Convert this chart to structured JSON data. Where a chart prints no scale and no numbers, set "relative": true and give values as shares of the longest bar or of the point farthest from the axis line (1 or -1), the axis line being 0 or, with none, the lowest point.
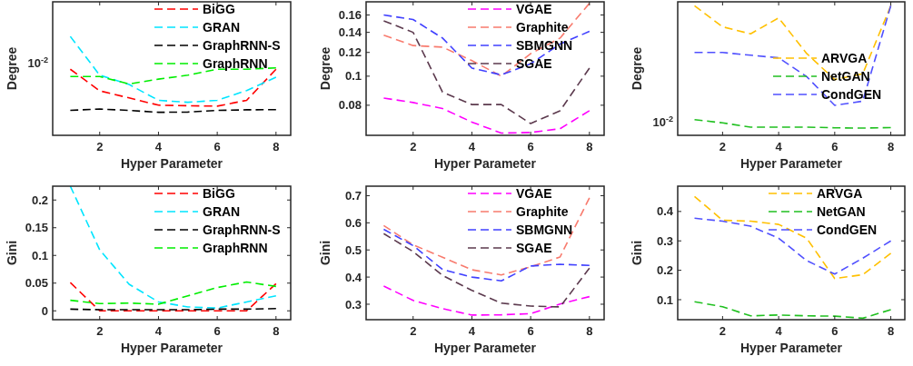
{
  "chart_data": [
    {
      "type": "line",
      "x": [
        1,
        2,
        3,
        4,
        5,
        6,
        7,
        8
      ],
      "xlim": [
        0.4,
        8.5
      ],
      "xticks": [
        2,
        4,
        6,
        8
      ],
      "relative": true,
      "annotations": [
        "10$^{-2}$"
      ],
      "xlabel": "Hyper Parameter",
      "ylabel": "Degree",
      "legend": "top right",
      "line_style": "dashed",
      "series": [
        {
          "name": "BiGG",
          "color": "#ff0000",
          "values": [
            0.668,
            0.45,
            0.378,
            0.305,
            0.299,
            0.295,
            0.354,
            0.668
          ]
        },
        {
          "name": "GRAN",
          "color": "#00e5ff",
          "values": [
            1,
            0.608,
            0.514,
            0.354,
            0.334,
            0.354,
            0.453,
            0.588
          ]
        },
        {
          "name": "GraphRNN-S",
          "color": "#000000",
          "values": [
            0.252,
            0.266,
            0.252,
            0.233,
            0.235,
            0.252,
            0.258,
            0.26
          ]
        },
        {
          "name": "GraphRNN",
          "color": "#00ee00",
          "values": [
            0.595,
            0.595,
            0.519,
            0.568,
            0.608,
            0.668,
            0.668,
            0.682
          ]
        }
      ]
    },
    {
      "type": "line",
      "x": [
        1,
        2,
        3,
        4,
        5,
        6,
        7,
        8
      ],
      "xlim": [
        0.4,
        8.5
      ],
      "xticks": [
        2,
        4,
        6,
        8
      ],
      "log": "y",
      "ylim": [
        0.0635,
        0.177
      ],
      "yticks": [
        0.08,
        0.1,
        0.12,
        0.14,
        0.16
      ],
      "xlabel": "Hyper Parameter",
      "ylabel": "Degree",
      "legend": "top right",
      "line_style": "dashed",
      "series": [
        {
          "name": "VGAE",
          "color": "#ff00ff",
          "values": [
            0.0845,
            0.0817,
            0.078,
            0.0703,
            0.0646,
            0.0649,
            0.0668,
            0.0767
          ]
        },
        {
          "name": "Graphite",
          "color": "#f87b6e",
          "values": [
            0.137,
            0.1265,
            0.125,
            0.1127,
            0.1,
            0.1189,
            0.134,
            0.175
          ]
        },
        {
          "name": "SBMGNN",
          "color": "#4040ff",
          "values": [
            0.16,
            0.1545,
            0.134,
            0.1064,
            0.101,
            0.11,
            0.128,
            0.141
          ]
        },
        {
          "name": "SGAE",
          "color": "#5c3a4e",
          "values": [
            0.153,
            0.14,
            0.0885,
            0.0804,
            0.0804,
            0.0695,
            0.0767,
            0.1064
          ]
        }
      ]
    },
    {
      "type": "line",
      "x": [
        1,
        2,
        3,
        4,
        5,
        6,
        7,
        8
      ],
      "xlim": [
        0.4,
        8.5
      ],
      "xticks": [
        2,
        4,
        6,
        8
      ],
      "relative": true,
      "annotations": [
        "10$^{-2}$"
      ],
      "xlabel": "Hyper Parameter",
      "ylabel": "Degree",
      "legend": "right",
      "line_style": "dashed",
      "series": [
        {
          "name": "ARVGA",
          "color": "#ffc000",
          "values": [
            1,
            0.837,
            0.783,
            0.906,
            0.631,
            0.43,
            0.475,
            1
          ]
        },
        {
          "name": "NetGAN",
          "color": "#20c020",
          "values": [
            0.121,
            0.096,
            0.0626,
            0.0626,
            0.0634,
            0.058,
            0.0557,
            0.0595
          ]
        },
        {
          "name": "CondGEN",
          "color": "#5050ff",
          "values": [
            0.639,
            0.639,
            0.618,
            0.598,
            0.453,
            0.231,
            0.264,
            1
          ]
        }
      ]
    },
    {
      "type": "line",
      "x": [
        1,
        2,
        3,
        4,
        5,
        6,
        7,
        8
      ],
      "xlim": [
        0.4,
        8.5
      ],
      "xticks": [
        2,
        4,
        6,
        8
      ],
      "ylim": [
        -0.016,
        0.225
      ],
      "yticks": [
        0,
        0.05,
        0.1,
        0.15,
        0.2
      ],
      "xlabel": "Hyper Parameter",
      "ylabel": "Gini",
      "legend": "top right",
      "line_style": "dashed",
      "series": [
        {
          "name": "BiGG",
          "color": "#ff0000",
          "values": [
            0.051,
            0,
            0,
            0,
            0,
            0,
            0,
            0.049
          ]
        },
        {
          "name": "GRAN",
          "color": "#00e5ff",
          "values": [
            0.225,
            0.11,
            0.048,
            0.016,
            0.007,
            0.005,
            0.016,
            0.027
          ]
        },
        {
          "name": "GraphRNN-S",
          "color": "#000000",
          "values": [
            0.003,
            0.002,
            0.002,
            0.002,
            0.002,
            0.003,
            0.003,
            0.004
          ]
        },
        {
          "name": "GraphRNN",
          "color": "#00ee00",
          "values": [
            0.019,
            0.013,
            0.014,
            0.012,
            0.027,
            0.042,
            0.052,
            0.044
          ]
        }
      ]
    },
    {
      "type": "line",
      "x": [
        1,
        2,
        3,
        4,
        5,
        6,
        7,
        8
      ],
      "xlim": [
        0.4,
        8.5
      ],
      "xticks": [
        2,
        4,
        6,
        8
      ],
      "ylim": [
        0.243,
        0.735
      ],
      "yticks": [
        0.3,
        0.4,
        0.5,
        0.6,
        0.7
      ],
      "xlabel": "Hyper Parameter",
      "ylabel": "Gini",
      "legend": "top right",
      "line_style": "dashed",
      "series": [
        {
          "name": "VGAE",
          "color": "#ff00ff",
          "values": [
            0.367,
            0.314,
            0.284,
            0.26,
            0.261,
            0.265,
            0.301,
            0.328
          ]
        },
        {
          "name": "Graphite",
          "color": "#f87b6e",
          "values": [
            0.59,
            0.519,
            0.473,
            0.427,
            0.408,
            0.438,
            0.474,
            0.692
          ]
        },
        {
          "name": "SBMGNN",
          "color": "#4040ff",
          "values": [
            0.576,
            0.516,
            0.428,
            0.4,
            0.386,
            0.441,
            0.447,
            0.443
          ]
        },
        {
          "name": "SGAE",
          "color": "#5c3a4e",
          "values": [
            0.56,
            0.494,
            0.406,
            0.351,
            0.304,
            0.293,
            0.29,
            0.433
          ]
        }
      ]
    },
    {
      "type": "line",
      "x": [
        1,
        2,
        3,
        4,
        5,
        6,
        7,
        8
      ],
      "xlim": [
        0.4,
        8.5
      ],
      "xticks": [
        2,
        4,
        6,
        8
      ],
      "ylim": [
        0.032,
        0.486
      ],
      "yticks": [
        0.1,
        0.2,
        0.3,
        0.4
      ],
      "xlabel": "Hyper Parameter",
      "ylabel": "Gini",
      "legend": "top right",
      "line_style": "dashed",
      "series": [
        {
          "name": "ARVGA",
          "color": "#ffc000",
          "values": [
            0.451,
            0.37,
            0.367,
            0.356,
            0.309,
            0.172,
            0.185,
            0.258
          ]
        },
        {
          "name": "NetGAN",
          "color": "#20c020",
          "values": [
            0.093,
            0.076,
            0.045,
            0.048,
            0.045,
            0.044,
            0.037,
            0.066
          ]
        },
        {
          "name": "CondGEN",
          "color": "#5050ff",
          "values": [
            0.377,
            0.367,
            0.35,
            0.309,
            0.233,
            0.187,
            0.241,
            0.3
          ]
        }
      ]
    }
  ]
}
